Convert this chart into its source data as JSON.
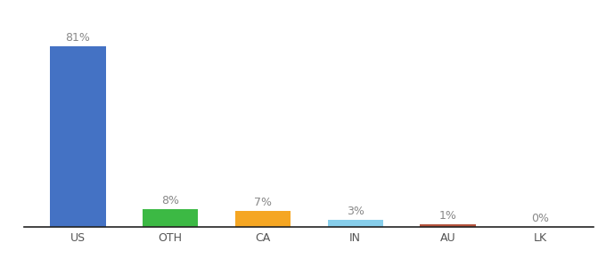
{
  "categories": [
    "US",
    "OTH",
    "CA",
    "IN",
    "AU",
    "LK"
  ],
  "values": [
    81,
    8,
    7,
    3,
    1,
    0
  ],
  "labels": [
    "81%",
    "8%",
    "7%",
    "3%",
    "1%",
    "0%"
  ],
  "bar_colors": [
    "#4472c4",
    "#3cb944",
    "#f5a623",
    "#87ceeb",
    "#b5533c",
    "#d3d3d3"
  ],
  "background_color": "#ffffff",
  "ylim": [
    0,
    92
  ],
  "bar_width": 0.6,
  "label_fontsize": 9,
  "tick_fontsize": 9,
  "label_color": "#888888",
  "tick_color": "#555555",
  "spine_color": "#222222"
}
